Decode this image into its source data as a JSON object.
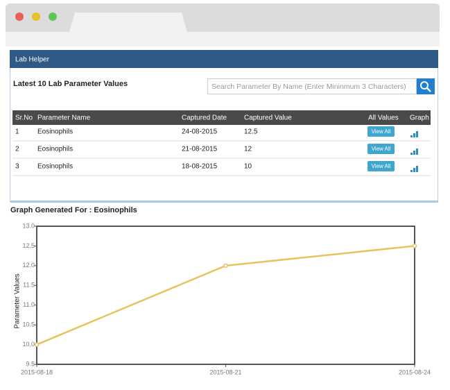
{
  "panel": {
    "title": "Lab Helper",
    "heading": "Latest 10 Lab Parameter Values",
    "search_placeholder": "Search Parameter By Name (Enter Mininmum 3 Characters)"
  },
  "table": {
    "columns": [
      "Sr.No",
      "Parameter Name",
      "Captured Date",
      "Captured Value",
      "All Values",
      "Graph"
    ],
    "rows": [
      [
        1,
        "Eosinophils",
        "24-08-2015",
        12.5,
        "View All"
      ],
      [
        2,
        "Eosinophils",
        "21-08-2015",
        12,
        "View All"
      ],
      [
        3,
        "Eosinophils",
        "18-08-2015",
        10,
        "View All"
      ]
    ]
  },
  "chart_data": {
    "type": "line",
    "title": "Graph Generated For : Eosinophils",
    "y_label": "Parameter Values",
    "x": [
      "2015-08-18",
      "2015-08-21",
      "2015-08-24"
    ],
    "xlim": [
      "2015-08-18",
      "2015-08-24"
    ],
    "xticks": [
      "2015-08-18",
      "2015-08-21",
      "2015-08-24"
    ],
    "series": [
      {
        "name": "Eosinophils",
        "color": "#e6c35c",
        "values": [
          10,
          12,
          12.5
        ]
      }
    ],
    "ylim": [
      9.5,
      13
    ],
    "yticks": [
      {
        "value": 9.5,
        "label": "9.5"
      },
      {
        "value": 10,
        "label": "10.0"
      },
      {
        "value": 10.5,
        "label": "10.5"
      },
      {
        "value": 11,
        "label": "11.0"
      },
      {
        "value": 11.5,
        "label": "11.5"
      },
      {
        "value": 12,
        "label": "12.0"
      },
      {
        "value": 12.5,
        "label": "12.5"
      },
      {
        "value": 13,
        "label": "13.0"
      }
    ],
    "grid": false
  }
}
